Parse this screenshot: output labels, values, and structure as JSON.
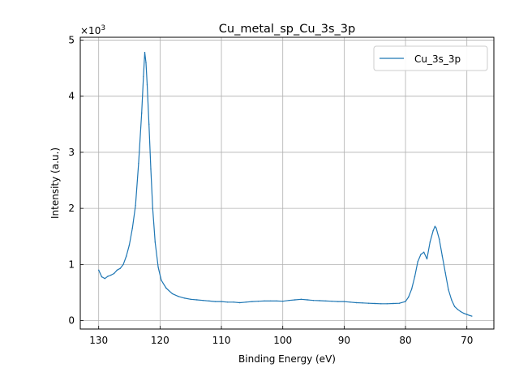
{
  "chart_data": {
    "type": "line",
    "title": "Cu_metal_sp_Cu_3s_3p",
    "xlabel": "Binding Energy (eV)",
    "ylabel": "Intensity (a.u.)",
    "y_scale_label": "×10",
    "y_scale_exponent": "3",
    "xlim": [
      133,
      65.6
    ],
    "ylim": [
      -150,
      5050
    ],
    "x_reversed": true,
    "grid": true,
    "legend_position": "upper right",
    "xticks": [
      {
        "value": 130,
        "label": "130"
      },
      {
        "value": 120,
        "label": "120"
      },
      {
        "value": 110,
        "label": "110"
      },
      {
        "value": 100,
        "label": "100"
      },
      {
        "value": 90,
        "label": "90"
      },
      {
        "value": 80,
        "label": "80"
      },
      {
        "value": 70,
        "label": "70"
      }
    ],
    "yticks": [
      {
        "value": 0,
        "label": "0"
      },
      {
        "value": 1000,
        "label": "1"
      },
      {
        "value": 2000,
        "label": "2"
      },
      {
        "value": 3000,
        "label": "3"
      },
      {
        "value": 4000,
        "label": "4"
      },
      {
        "value": 5000,
        "label": "5"
      }
    ],
    "series": [
      {
        "name": "Cu_3s_3p",
        "color": "#1f77b4",
        "points": [
          [
            130.0,
            900
          ],
          [
            129.5,
            780
          ],
          [
            129.0,
            750
          ],
          [
            128.5,
            790
          ],
          [
            128.0,
            810
          ],
          [
            127.5,
            840
          ],
          [
            127.0,
            900
          ],
          [
            126.5,
            930
          ],
          [
            126.0,
            1000
          ],
          [
            125.5,
            1150
          ],
          [
            125.0,
            1350
          ],
          [
            124.5,
            1650
          ],
          [
            124.0,
            2050
          ],
          [
            123.5,
            2800
          ],
          [
            123.0,
            3700
          ],
          [
            122.7,
            4350
          ],
          [
            122.5,
            4780
          ],
          [
            122.3,
            4600
          ],
          [
            122.1,
            4200
          ],
          [
            121.8,
            3500
          ],
          [
            121.5,
            2700
          ],
          [
            121.2,
            2000
          ],
          [
            120.8,
            1400
          ],
          [
            120.3,
            950
          ],
          [
            119.8,
            720
          ],
          [
            119.0,
            580
          ],
          [
            118.0,
            480
          ],
          [
            117.0,
            430
          ],
          [
            116.0,
            400
          ],
          [
            115.0,
            380
          ],
          [
            114.0,
            370
          ],
          [
            113.0,
            360
          ],
          [
            112.0,
            350
          ],
          [
            111.0,
            340
          ],
          [
            110.0,
            340
          ],
          [
            109.0,
            330
          ],
          [
            108.0,
            330
          ],
          [
            107.0,
            320
          ],
          [
            106.0,
            330
          ],
          [
            105.0,
            340
          ],
          [
            104.0,
            345
          ],
          [
            103.0,
            350
          ],
          [
            102.0,
            350
          ],
          [
            101.0,
            350
          ],
          [
            100.0,
            345
          ],
          [
            99.0,
            360
          ],
          [
            98.0,
            370
          ],
          [
            97.0,
            380
          ],
          [
            96.0,
            370
          ],
          [
            95.0,
            360
          ],
          [
            94.0,
            355
          ],
          [
            93.0,
            350
          ],
          [
            92.0,
            345
          ],
          [
            91.0,
            340
          ],
          [
            90.0,
            340
          ],
          [
            89.0,
            330
          ],
          [
            88.0,
            320
          ],
          [
            87.0,
            315
          ],
          [
            86.0,
            310
          ],
          [
            85.0,
            305
          ],
          [
            84.0,
            300
          ],
          [
            83.0,
            300
          ],
          [
            82.0,
            305
          ],
          [
            81.0,
            310
          ],
          [
            80.0,
            340
          ],
          [
            79.5,
            420
          ],
          [
            79.0,
            560
          ],
          [
            78.5,
            780
          ],
          [
            78.0,
            1050
          ],
          [
            77.5,
            1180
          ],
          [
            77.0,
            1220
          ],
          [
            76.5,
            1100
          ],
          [
            76.0,
            1400
          ],
          [
            75.5,
            1600
          ],
          [
            75.2,
            1680
          ],
          [
            75.0,
            1650
          ],
          [
            74.5,
            1450
          ],
          [
            74.0,
            1150
          ],
          [
            73.5,
            850
          ],
          [
            73.0,
            550
          ],
          [
            72.5,
            370
          ],
          [
            72.0,
            250
          ],
          [
            71.5,
            200
          ],
          [
            71.0,
            160
          ],
          [
            70.5,
            130
          ],
          [
            70.0,
            110
          ],
          [
            69.5,
            90
          ],
          [
            69.2,
            80
          ]
        ]
      }
    ]
  }
}
